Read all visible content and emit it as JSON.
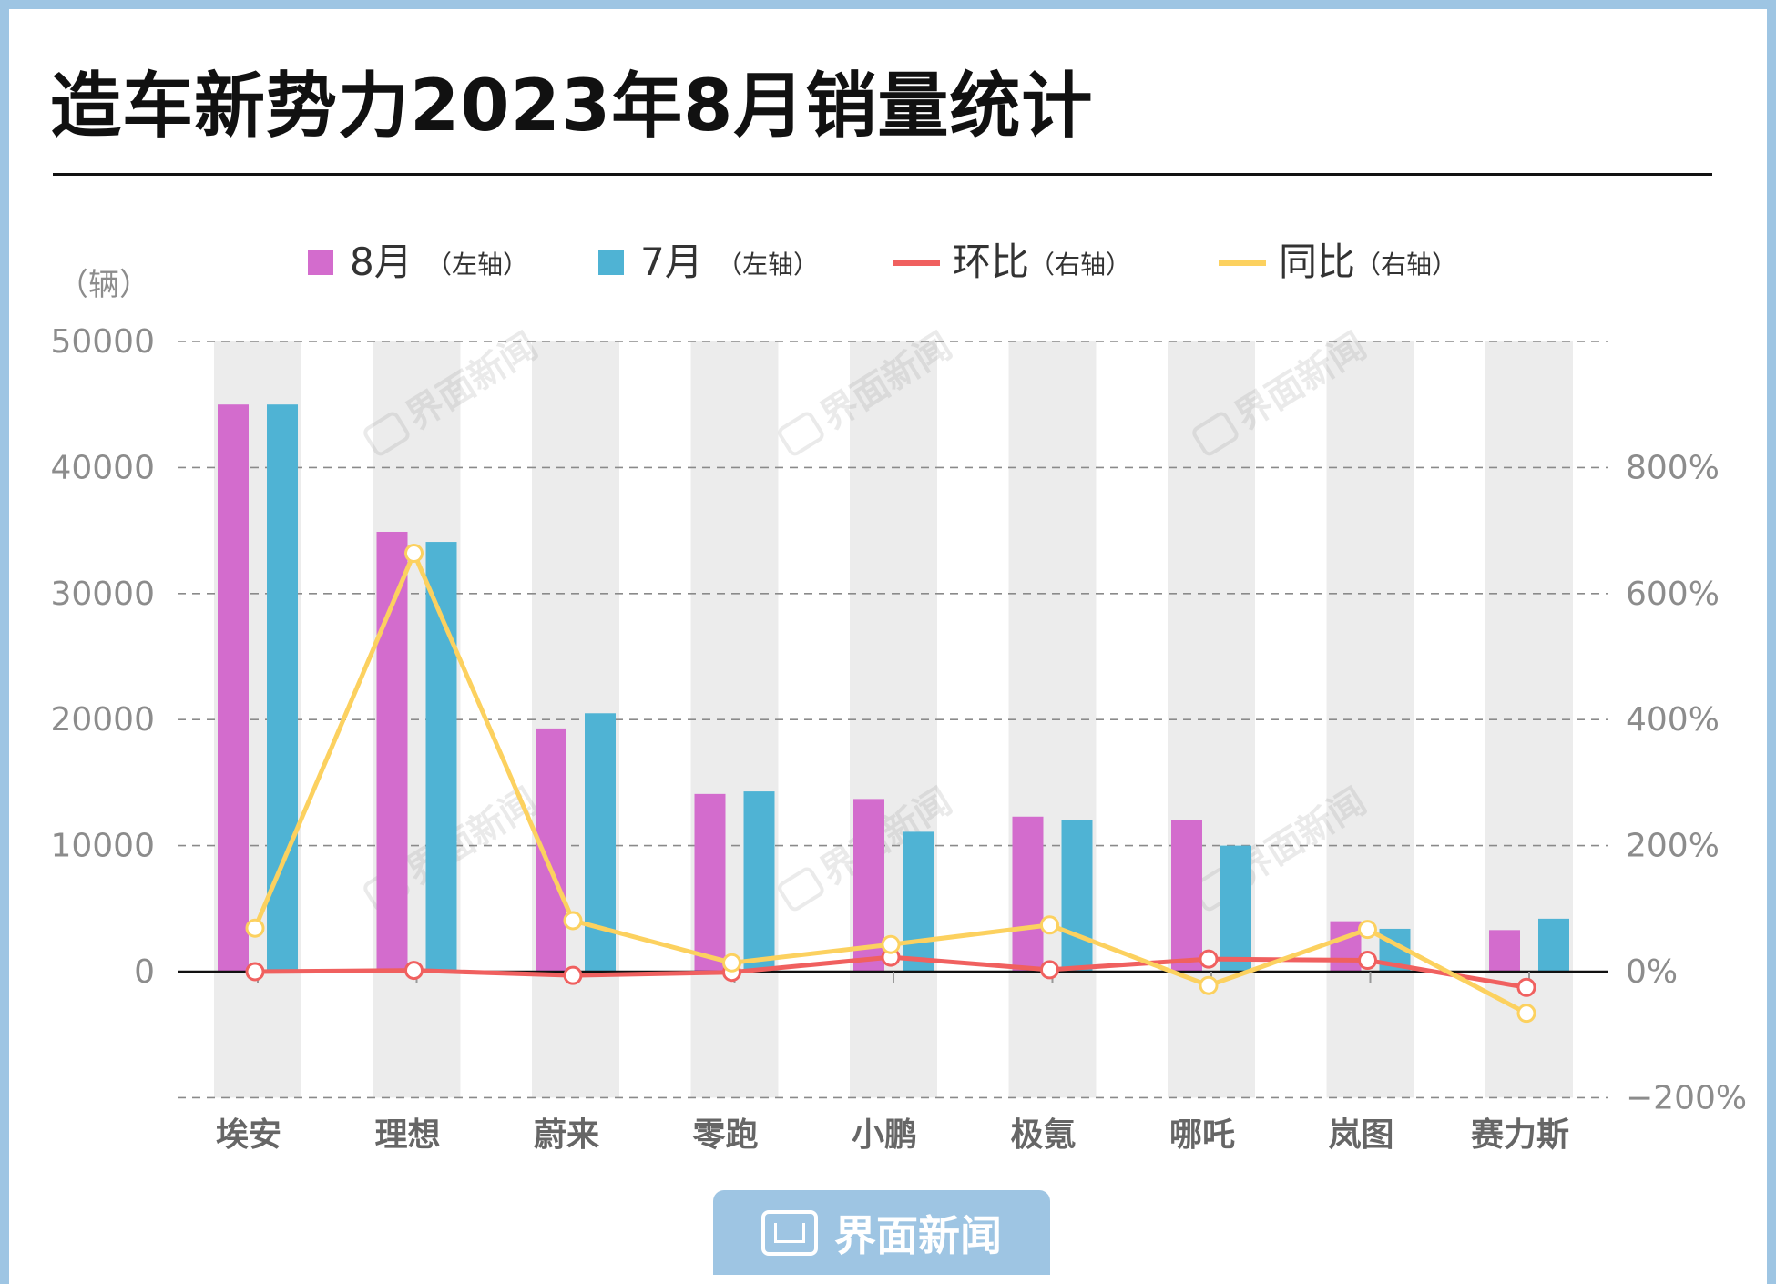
{
  "title": "造车新势力2023年8月销量统计",
  "footer": {
    "brand": "界面新闻"
  },
  "chart_data": {
    "type": "bar",
    "title": "造车新势力2023年8月销量统计",
    "ylabel_left": "（辆）",
    "ylim_left": [
      -10000,
      50000
    ],
    "yticks_left": [
      "50000",
      "40000",
      "30000",
      "20000",
      "10000",
      "0"
    ],
    "ylim_right": [
      -200,
      1000
    ],
    "yticks_right": [
      "800%",
      "600%",
      "400%",
      "200%",
      "0%",
      "−200%"
    ],
    "categories": [
      "埃安",
      "理想",
      "蔚来",
      "零跑",
      "小鹏",
      "极氪",
      "哪吒",
      "岚图",
      "赛力斯"
    ],
    "series": [
      {
        "name": "8月",
        "axis_note": "（左轴）",
        "type": "bar",
        "color": "#d36ccd",
        "values": [
          45000,
          34900,
          19300,
          14100,
          13700,
          12300,
          12000,
          4000,
          3300
        ]
      },
      {
        "name": "7月",
        "axis_note": "（左轴）",
        "type": "bar",
        "color": "#4fb3d4",
        "values": [
          45000,
          34100,
          20500,
          14300,
          11100,
          12000,
          10000,
          3400,
          4200
        ]
      },
      {
        "name": "环比",
        "axis_note": "（右轴）",
        "type": "line",
        "color": "#f0605f",
        "values": [
          0,
          2,
          -6,
          -1,
          23,
          3,
          20,
          18,
          -25
        ]
      },
      {
        "name": "同比",
        "axis_note": "（右轴）",
        "type": "line",
        "color": "#fcd15f",
        "values": [
          69,
          664,
          81,
          14,
          43,
          74,
          -22,
          67,
          -66
        ]
      }
    ],
    "legend_position": "top",
    "grid": true
  }
}
